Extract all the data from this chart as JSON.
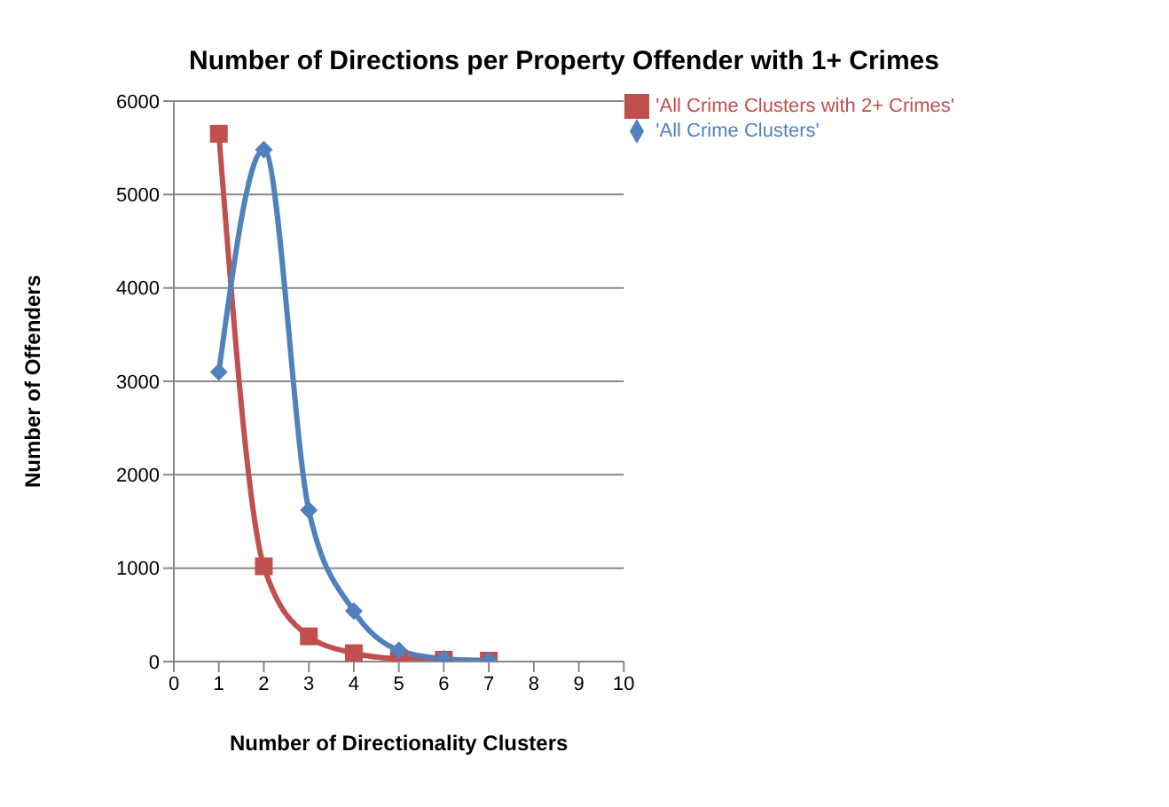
{
  "chart_data": {
    "type": "line",
    "title": "Number of Directions per Property Offender with 1+ Crimes",
    "xlabel": "Number of Directionality Clusters",
    "ylabel": "Number of Offenders",
    "x": [
      1,
      2,
      3,
      4,
      5,
      6,
      7
    ],
    "series": [
      {
        "name": "'All Crime Clusters with 2+ Crimes'",
        "color": "#c0504d",
        "marker": "square",
        "values": [
          5650,
          1020,
          270,
          90,
          30,
          20,
          10
        ]
      },
      {
        "name": "'All Crime Clusters'",
        "color": "#4f81bd",
        "marker": "diamond",
        "values": [
          3100,
          5480,
          1620,
          540,
          120,
          30,
          10
        ]
      }
    ],
    "xlim": [
      0,
      10
    ],
    "xticks": [
      0,
      1,
      2,
      3,
      4,
      5,
      6,
      7,
      8,
      9,
      10
    ],
    "ylim": [
      0,
      6000
    ],
    "yticks": [
      0,
      1000,
      2000,
      3000,
      4000,
      5000,
      6000
    ],
    "grid": "y",
    "legend": "top right",
    "line_style": "solid"
  }
}
